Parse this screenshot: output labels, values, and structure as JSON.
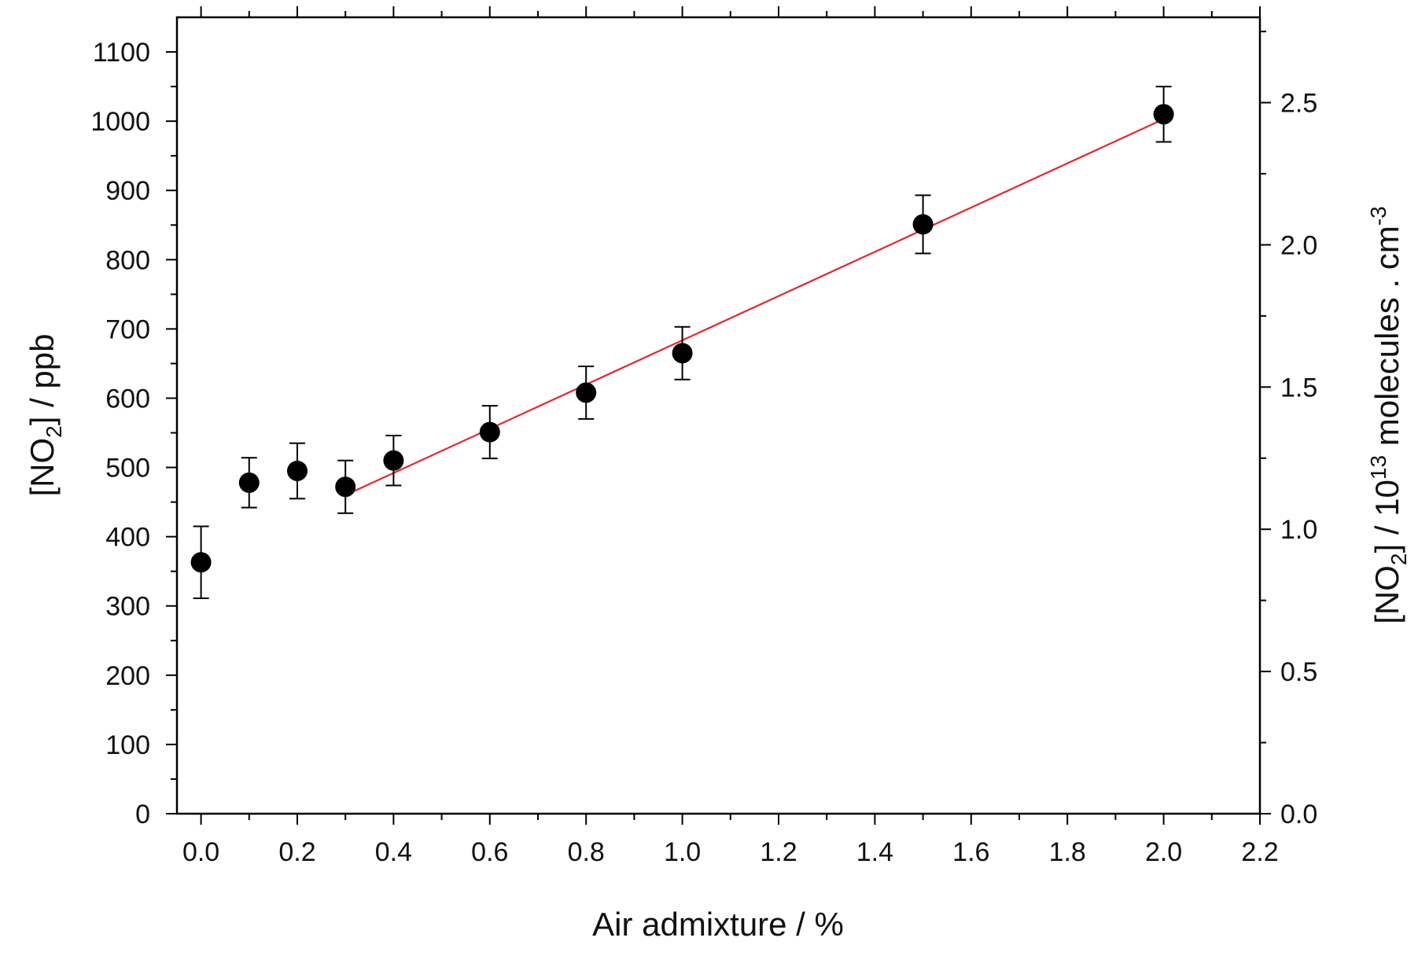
{
  "chart_data": {
    "type": "scatter",
    "xlabel": "Air admixture / %",
    "ylabel_left": {
      "prefix": "[NO",
      "sub": "2",
      "suffix": "] / ppb"
    },
    "ylabel_right": {
      "prefix": "[NO",
      "sub": "2",
      "mid": "] / 10",
      "sup": "13",
      "after": " molecules . cm",
      "sup2": "-3"
    },
    "xlim": [
      -0.05,
      2.2
    ],
    "ylim_left": [
      0,
      1150
    ],
    "ylim_right": [
      0,
      2.8
    ],
    "x_ticks": [
      "0.0",
      "0.2",
      "0.4",
      "0.6",
      "0.8",
      "1.0",
      "1.2",
      "1.4",
      "1.6",
      "1.8",
      "2.0",
      "2.2"
    ],
    "y_left_ticks": [
      "0",
      "100",
      "200",
      "300",
      "400",
      "500",
      "600",
      "700",
      "800",
      "900",
      "1000",
      "1100"
    ],
    "y_right_ticks": [
      "0.0",
      "0.5",
      "1.0",
      "1.5",
      "2.0",
      "2.5"
    ],
    "grid": false,
    "marker_color": "#000000",
    "fit_color": "#e8262a",
    "series": [
      {
        "x": [
          0.0,
          0.1,
          0.2,
          0.3,
          0.4,
          0.6,
          0.8,
          1.0,
          1.5,
          2.0
        ],
        "y": [
          363,
          478,
          495,
          472,
          510,
          551,
          608,
          665,
          851,
          1010
        ],
        "y_err": [
          52,
          36,
          40,
          38,
          36,
          38,
          38,
          38,
          42,
          40
        ]
      }
    ],
    "fit_line": {
      "x": [
        0.3,
        2.0
      ],
      "y": [
        460,
        1003
      ]
    }
  }
}
